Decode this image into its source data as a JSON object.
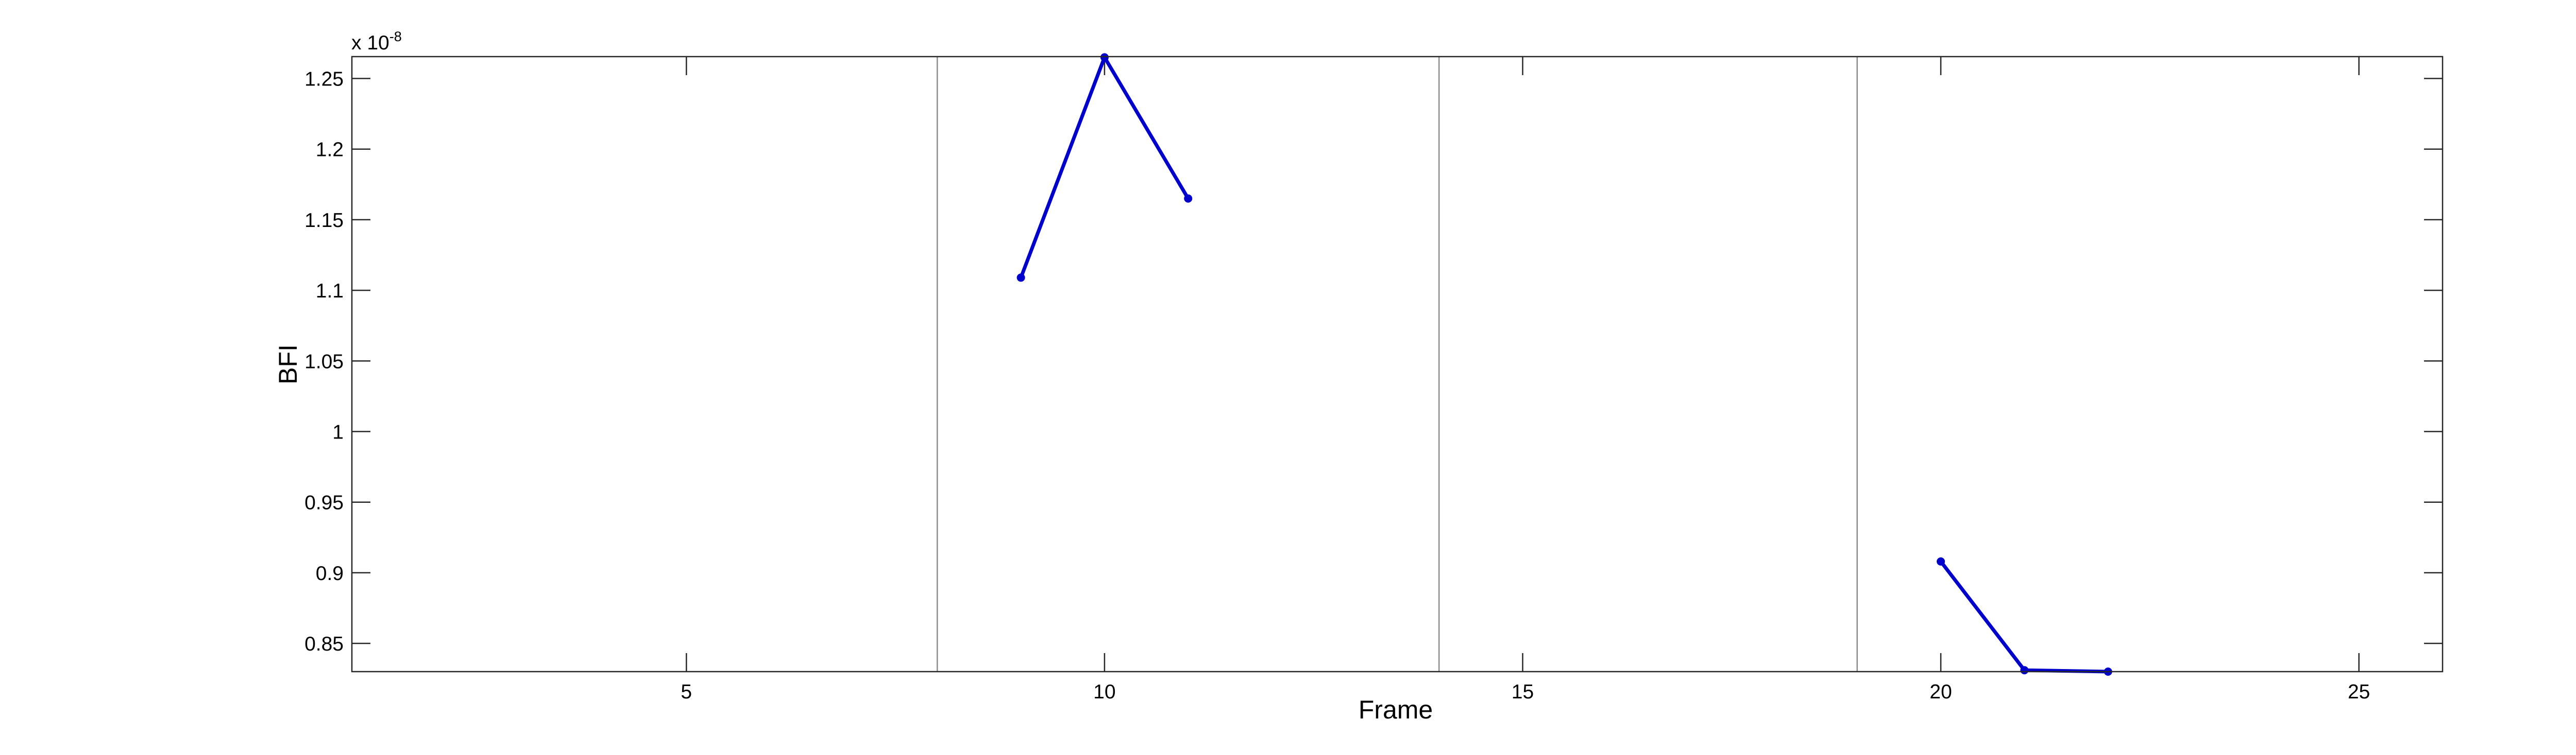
{
  "chart_data": {
    "type": "line",
    "xlabel": "Frame",
    "ylabel": "BFI",
    "y_exponent_prefix": "x 10",
    "y_exponent_power": "-8",
    "xlim": [
      1,
      26
    ],
    "ylim": [
      0.83,
      1.2655
    ],
    "x_ticks": [
      5,
      10,
      15,
      20,
      25
    ],
    "x_tick_labels": [
      "5",
      "10",
      "15",
      "20",
      "25"
    ],
    "y_ticks": [
      0.85,
      0.9,
      0.95,
      1,
      1.05,
      1.1,
      1.15,
      1.2,
      1.25
    ],
    "y_tick_labels": [
      "0.85",
      "0.9",
      "0.95",
      "1",
      "1.05",
      "1.1",
      "1.15",
      "1.2",
      "1.25"
    ],
    "vertical_lines_x": [
      8,
      14,
      19
    ],
    "grid": false,
    "series": [
      {
        "color": "#0000cc",
        "segments": [
          {
            "x": [
              9,
              10,
              11
            ],
            "y": [
              1.109,
              1.265,
              1.165
            ]
          },
          {
            "x": [
              20,
              21,
              22
            ],
            "y": [
              0.908,
              0.831,
              0.83
            ]
          }
        ]
      }
    ]
  }
}
